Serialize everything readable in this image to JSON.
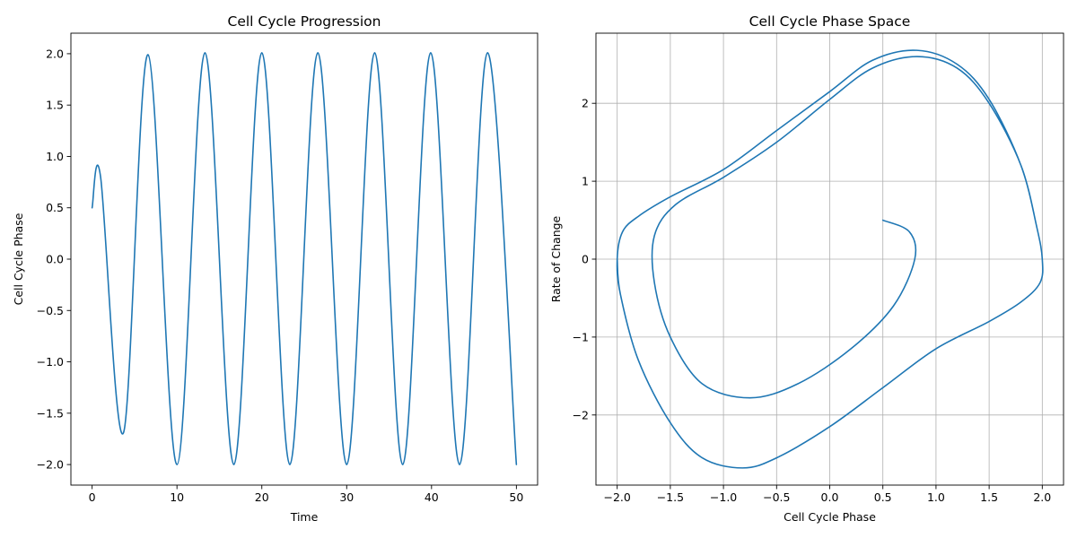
{
  "chart_data": [
    {
      "type": "line",
      "title": "Cell Cycle Progression",
      "xlabel": "Time",
      "ylabel": "Cell Cycle Phase",
      "xlim": [
        -2.5,
        52.5
      ],
      "ylim": [
        -2.2,
        2.2
      ],
      "xticks": [
        0,
        10,
        20,
        30,
        40,
        50
      ],
      "xtick_labels": [
        "0",
        "10",
        "20",
        "30",
        "40",
        "50"
      ],
      "yticks": [
        -2.0,
        -1.5,
        -1.0,
        -0.5,
        0.0,
        0.5,
        1.0,
        1.5,
        2.0
      ],
      "ytick_labels": [
        "−2.0",
        "−1.5",
        "−1.0",
        "−0.5",
        "0.0",
        "0.5",
        "1.0",
        "1.5",
        "2.0"
      ],
      "grid": false,
      "color": "#1f77b4",
      "series": [
        {
          "x": [
            0,
            1,
            3.7,
            6.6,
            10.0,
            13.3,
            16.7,
            20.0,
            23.3,
            26.6,
            30.0,
            33.3,
            36.6,
            39.9,
            43.3,
            46.6,
            50
          ],
          "y": [
            0.5,
            0.8,
            -1.69,
            1.99,
            -2.0,
            2.01,
            -2.0,
            2.01,
            -2.0,
            2.01,
            -2.0,
            2.01,
            -2.0,
            2.01,
            -2.0,
            2.01,
            -2.0
          ]
        }
      ]
    },
    {
      "type": "line",
      "title": "Cell Cycle Phase Space",
      "xlabel": "Cell Cycle Phase",
      "ylabel": "Rate of Change",
      "xlim": [
        -2.2,
        2.2
      ],
      "ylim": [
        -2.9,
        2.9
      ],
      "xticks": [
        -2.0,
        -1.5,
        -1.0,
        -0.5,
        0.0,
        0.5,
        1.0,
        1.5,
        2.0
      ],
      "xtick_labels": [
        "−2.0",
        "−1.5",
        "−1.0",
        "−0.5",
        "0.0",
        "0.5",
        "1.0",
        "1.5",
        "2.0"
      ],
      "yticks": [
        -2,
        -1,
        0,
        1,
        2
      ],
      "ytick_labels": [
        "−2",
        "−1",
        "0",
        "1",
        "2"
      ],
      "grid": true,
      "color": "#1f77b4",
      "series": [
        {
          "x": [
            0.5,
            0.75,
            0.8,
            0.6,
            0.2,
            -0.3,
            -0.75,
            -1.2,
            -1.5,
            -1.65,
            -1.65,
            -1.45,
            -1.0,
            -0.5,
            0.0,
            0.4,
            0.82,
            1.2,
            1.5,
            1.8,
            1.95,
            2.0,
            1.98,
            1.8,
            1.5,
            1.0,
            0.5,
            0.0,
            -0.5,
            -0.82,
            -1.2,
            -1.5,
            -1.8,
            -1.97,
            -2.0,
            -1.95,
            -1.8,
            -1.5,
            -1.0,
            -0.5,
            0.0,
            0.4,
            0.82,
            1.2,
            1.5,
            1.8,
            1.95,
            2.0,
            1.98,
            1.8,
            1.5,
            1.0,
            0.5,
            0.0,
            -0.5,
            -0.82,
            -1.2,
            -1.5,
            -1.8,
            -1.97,
            -2.0
          ],
          "y": [
            0.5,
            0.35,
            0.0,
            -0.6,
            -1.15,
            -1.6,
            -1.78,
            -1.6,
            -1.0,
            -0.3,
            0.3,
            0.7,
            1.05,
            1.5,
            2.05,
            2.45,
            2.6,
            2.45,
            2.0,
            1.2,
            0.4,
            0.0,
            -0.3,
            -0.55,
            -0.8,
            -1.15,
            -1.65,
            -2.15,
            -2.55,
            -2.68,
            -2.55,
            -2.1,
            -1.3,
            -0.45,
            0.0,
            0.35,
            0.55,
            0.8,
            1.15,
            1.65,
            2.15,
            2.55,
            2.68,
            2.5,
            2.05,
            1.2,
            0.4,
            0.0,
            -0.3,
            -0.55,
            -0.8,
            -1.15,
            -1.65,
            -2.15,
            -2.55,
            -2.68,
            -2.55,
            -2.1,
            -1.3,
            -0.45,
            0.0
          ]
        }
      ]
    }
  ]
}
